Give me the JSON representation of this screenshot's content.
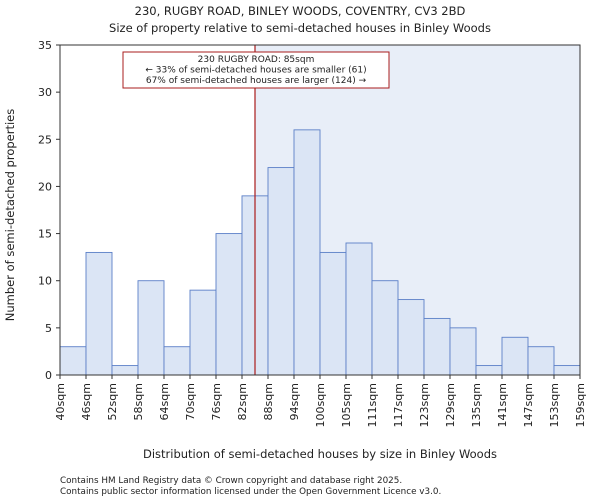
{
  "chart_data": {
    "type": "bar",
    "title_line1": "230, RUGBY ROAD, BINLEY WOODS, COVENTRY, CV3 2BD",
    "title_line2": "Size of property relative to semi-detached houses in Binley Woods",
    "xlabel": "Distribution of semi-detached houses by size in Binley Woods",
    "ylabel": "Number of semi-detached properties",
    "ylim": [
      0,
      35
    ],
    "yticks": [
      0,
      5,
      10,
      15,
      20,
      25,
      30,
      35
    ],
    "bin_edges": [
      40,
      46,
      52,
      58,
      64,
      70,
      76,
      82,
      88,
      94,
      100,
      105,
      111,
      117,
      123,
      129,
      135,
      141,
      147,
      153,
      159
    ],
    "tick_labels": [
      "40sqm",
      "46sqm",
      "52sqm",
      "58sqm",
      "64sqm",
      "70sqm",
      "76sqm",
      "82sqm",
      "88sqm",
      "94sqm",
      "100sqm",
      "105sqm",
      "111sqm",
      "117sqm",
      "123sqm",
      "129sqm",
      "135sqm",
      "141sqm",
      "147sqm",
      "153sqm",
      "159sqm"
    ],
    "values": [
      3,
      13,
      1,
      10,
      3,
      9,
      15,
      19,
      22,
      26,
      13,
      14,
      10,
      8,
      6,
      5,
      1,
      4,
      3,
      1
    ],
    "subject_value": 85,
    "annotation": {
      "line1": "230 RUGBY ROAD: 85sqm",
      "line2": "← 33% of semi-detached houses are smaller (61)",
      "line3": "67% of semi-detached houses are larger (124) →"
    },
    "colors": {
      "bar_fill": "#dbe5f5",
      "bar_edge": "#5b7fc7",
      "highlight_region": "#e8eef8",
      "marker_line": "#aa1c1c",
      "annotation_border": "#aa1c1c"
    }
  },
  "footer": {
    "line1": "Contains HM Land Registry data © Crown copyright and database right 2025.",
    "line2": "Contains public sector information licensed under the Open Government Licence v3.0."
  }
}
